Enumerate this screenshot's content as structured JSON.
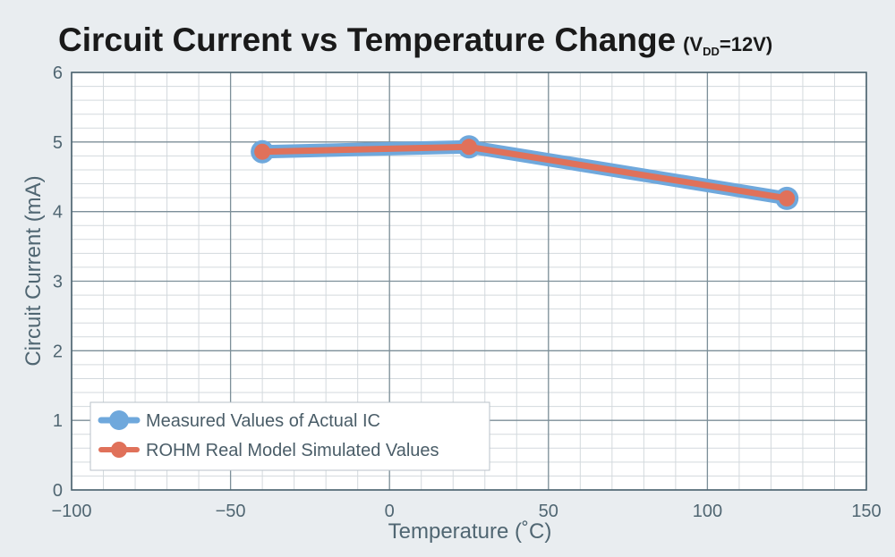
{
  "chart_data": {
    "type": "line",
    "title": "Circuit Current vs Temperature Change",
    "title_suffix_main": "(V",
    "title_suffix_sub": "DD",
    "title_suffix_end": "=12V)",
    "xlabel": "Temperature (˚C)",
    "ylabel": "Circuit Current (mA)",
    "xlim": [
      -100,
      150
    ],
    "ylim": [
      0,
      6
    ],
    "xticks": [
      -100,
      -50,
      0,
      50,
      100,
      150
    ],
    "xtick_labels": [
      "−100",
      "−50",
      "0",
      "50",
      "100",
      "150"
    ],
    "yticks": [
      0,
      1,
      2,
      3,
      4,
      5,
      6
    ],
    "ytick_labels": [
      "0",
      "1",
      "2",
      "3",
      "4",
      "5",
      "6"
    ],
    "grid": true,
    "legend_position": "bottom-left",
    "series": [
      {
        "name": "Measured Values of Actual IC",
        "color": "#6fa8dc",
        "x": [
          -40,
          25,
          125
        ],
        "y": [
          4.86,
          4.93,
          4.19
        ]
      },
      {
        "name": "ROHM Real Model Simulated Values",
        "color": "#e0715a",
        "x": [
          -40,
          25,
          125
        ],
        "y": [
          4.86,
          4.93,
          4.19
        ]
      }
    ]
  }
}
